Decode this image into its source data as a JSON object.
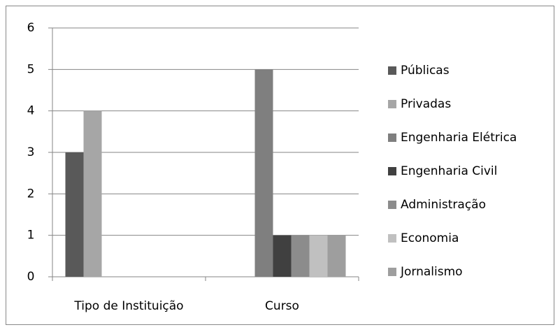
{
  "chart_data": {
    "type": "bar",
    "categories": [
      "Tipo de Instituição",
      "Curso"
    ],
    "series": [
      {
        "name": "Públicas",
        "color": "#595959",
        "values": [
          3,
          null
        ]
      },
      {
        "name": "Privadas",
        "color": "#a6a6a6",
        "values": [
          4,
          null
        ]
      },
      {
        "name": "Engenharia Elétrica",
        "color": "#7f7f7f",
        "values": [
          null,
          5
        ]
      },
      {
        "name": "Engenharia Civil",
        "color": "#404040",
        "values": [
          null,
          1
        ]
      },
      {
        "name": "Administração",
        "color": "#8c8c8c",
        "values": [
          null,
          1
        ]
      },
      {
        "name": "Economia",
        "color": "#c0c0c0",
        "values": [
          null,
          1
        ]
      },
      {
        "name": "Jornalismo",
        "color": "#9e9e9e",
        "values": [
          null,
          1
        ]
      }
    ],
    "ylim": [
      0,
      6
    ],
    "yticks": [
      0,
      1,
      2,
      3,
      4,
      5,
      6
    ],
    "grid": true,
    "legend": "right"
  }
}
